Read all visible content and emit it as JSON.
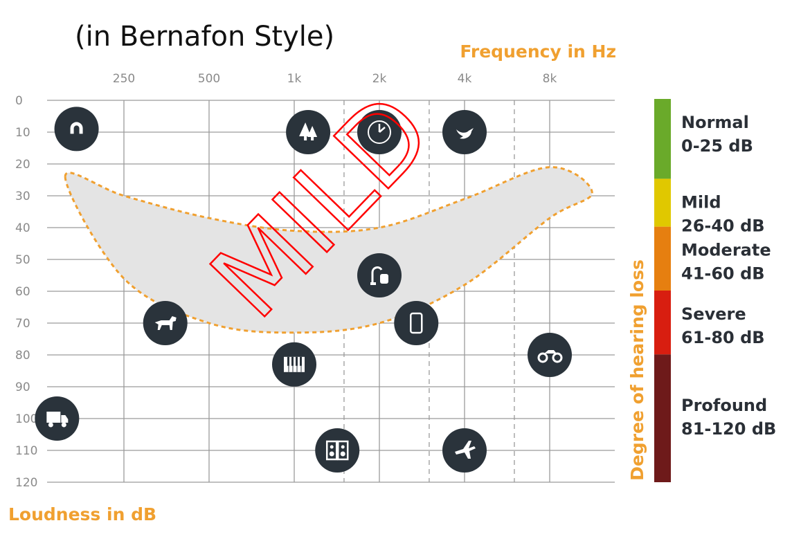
{
  "caption": "(in Bernafon Style)",
  "chart_data": {
    "type": "scatter",
    "title": "",
    "xlabel": "Frequency in Hz",
    "ylabel": "Loudness in dB",
    "y_side_label": "Degree of hearing loss",
    "x_ticks": [
      "250",
      "500",
      "1k",
      "2k",
      "4k",
      "8k"
    ],
    "y_ticks": [
      "0",
      "10",
      "20",
      "30",
      "40",
      "50",
      "60",
      "70",
      "80",
      "90",
      "100",
      "110",
      "120"
    ],
    "ylim": [
      0,
      120
    ],
    "y_inverted": true,
    "grid": true,
    "x_scale": "log2",
    "annotation": "MILD",
    "region": {
      "name": "speech banana",
      "color": "#e4e4e4",
      "border": "#f0a030",
      "top": [
        {
          "x": 155,
          "y": 24
        },
        {
          "x": 250,
          "y": 30
        },
        {
          "x": 500,
          "y": 37
        },
        {
          "x": 1000,
          "y": 41
        },
        {
          "x": 2000,
          "y": 40
        },
        {
          "x": 4000,
          "y": 31
        },
        {
          "x": 8000,
          "y": 21
        },
        {
          "x": 11300,
          "y": 29
        }
      ],
      "bottom": [
        {
          "x": 11300,
          "y": 29
        },
        {
          "x": 8000,
          "y": 37
        },
        {
          "x": 4000,
          "y": 58
        },
        {
          "x": 2000,
          "y": 70
        },
        {
          "x": 1000,
          "y": 73
        },
        {
          "x": 500,
          "y": 70
        },
        {
          "x": 250,
          "y": 56
        },
        {
          "x": 128,
          "y": 31
        }
      ]
    },
    "points": [
      {
        "icon": "magnet-icon",
        "x": 170,
        "y": 9
      },
      {
        "icon": "trees-icon",
        "x": 1120,
        "y": 10
      },
      {
        "icon": "clock-icon",
        "x": 2000,
        "y": 10
      },
      {
        "icon": "bird-icon",
        "x": 4000,
        "y": 10
      },
      {
        "icon": "vacuum-icon",
        "x": 2000,
        "y": 55
      },
      {
        "icon": "dog-icon",
        "x": 350,
        "y": 70
      },
      {
        "icon": "phone-icon",
        "x": 2700,
        "y": 70
      },
      {
        "icon": "piano-icon",
        "x": 1000,
        "y": 83
      },
      {
        "icon": "motorcycle-icon",
        "x": 8000,
        "y": 80
      },
      {
        "icon": "truck-icon",
        "x": 145,
        "y": 100
      },
      {
        "icon": "speaker-icon",
        "x": 1420,
        "y": 110
      },
      {
        "icon": "airplane-icon",
        "x": 4000,
        "y": 110
      }
    ],
    "legend": [
      {
        "name": "Normal",
        "range": "0-25 dB",
        "color": "#6aaa2a",
        "from": 0,
        "to": 25
      },
      {
        "name": "Mild",
        "range": "26-40 dB",
        "color": "#e0c800",
        "from": 25,
        "to": 40
      },
      {
        "name": "Moderate",
        "range": "41-60 dB",
        "color": "#e67f10",
        "from": 40,
        "to": 60
      },
      {
        "name": "Severe",
        "range": "61-80 dB",
        "color": "#d81e10",
        "from": 60,
        "to": 80
      },
      {
        "name": "Profound",
        "range": "81-120 dB",
        "color": "#6e1a1a",
        "from": 80,
        "to": 120
      }
    ],
    "legend_placement": "right"
  },
  "colors": {
    "icon_circle": "#2a333b",
    "grid": "#9a9a9a",
    "annotation": "#ff0000"
  }
}
